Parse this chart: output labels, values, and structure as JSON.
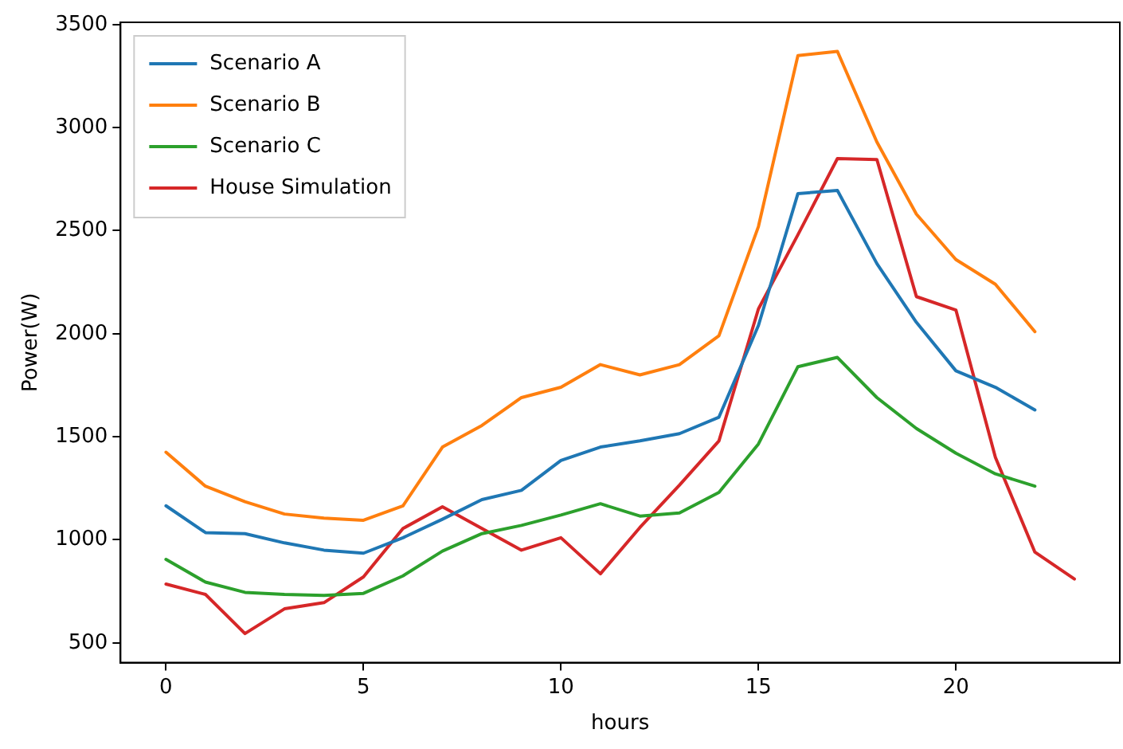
{
  "chart_data": {
    "type": "line",
    "xlabel": "hours",
    "ylabel": "Power(W)",
    "xlim": [
      -1.15,
      24.15
    ],
    "xticks": [
      0,
      5,
      10,
      15,
      20
    ],
    "ylim": [
      404,
      3511
    ],
    "yticks": [
      500,
      1000,
      1500,
      2000,
      2500,
      3000,
      3500
    ],
    "grid": false,
    "legend": "top left",
    "marker": "none",
    "line_style": "solid",
    "series": [
      {
        "name": "Scenario A",
        "color": "#1f77b4",
        "x": [
          0,
          1,
          2,
          3,
          4,
          5,
          6,
          7,
          8,
          9,
          10,
          11,
          12,
          13,
          14,
          15,
          16,
          17,
          18,
          19,
          20,
          21,
          22
        ],
        "values": [
          1165,
          1035,
          1030,
          985,
          950,
          935,
          1010,
          1100,
          1195,
          1240,
          1385,
          1450,
          1480,
          1515,
          1595,
          2040,
          2680,
          2695,
          2340,
          2055,
          1820,
          1740,
          1630
        ]
      },
      {
        "name": "Scenario B",
        "color": "#ff7f0e",
        "x": [
          0,
          1,
          2,
          3,
          4,
          5,
          6,
          7,
          8,
          9,
          10,
          11,
          12,
          13,
          14,
          15,
          16,
          17,
          18,
          19,
          20,
          21,
          22
        ],
        "values": [
          1425,
          1260,
          1185,
          1125,
          1105,
          1095,
          1165,
          1450,
          1555,
          1690,
          1740,
          1850,
          1800,
          1850,
          1990,
          2520,
          3350,
          3370,
          2930,
          2580,
          2360,
          2240,
          2010
        ]
      },
      {
        "name": "Scenario C",
        "color": "#2ca02c",
        "x": [
          0,
          1,
          2,
          3,
          4,
          5,
          6,
          7,
          8,
          9,
          10,
          11,
          12,
          13,
          14,
          15,
          16,
          17,
          18,
          19,
          20,
          21,
          22
        ],
        "values": [
          905,
          795,
          745,
          735,
          730,
          740,
          825,
          945,
          1030,
          1070,
          1120,
          1175,
          1115,
          1130,
          1230,
          1465,
          1840,
          1885,
          1690,
          1540,
          1420,
          1320,
          1260
        ]
      },
      {
        "name": "House Simulation",
        "color": "#d62728",
        "x": [
          0,
          1,
          2,
          3,
          4,
          5,
          6,
          7,
          8,
          9,
          10,
          11,
          12,
          13,
          14,
          15,
          16,
          17,
          18,
          19,
          20,
          21,
          22,
          23
        ],
        "values": [
          785,
          735,
          545,
          665,
          695,
          820,
          1055,
          1160,
          1055,
          950,
          1010,
          835,
          1060,
          1265,
          1480,
          2120,
          2480,
          2850,
          2845,
          2180,
          2115,
          1400,
          940,
          810
        ]
      }
    ]
  }
}
